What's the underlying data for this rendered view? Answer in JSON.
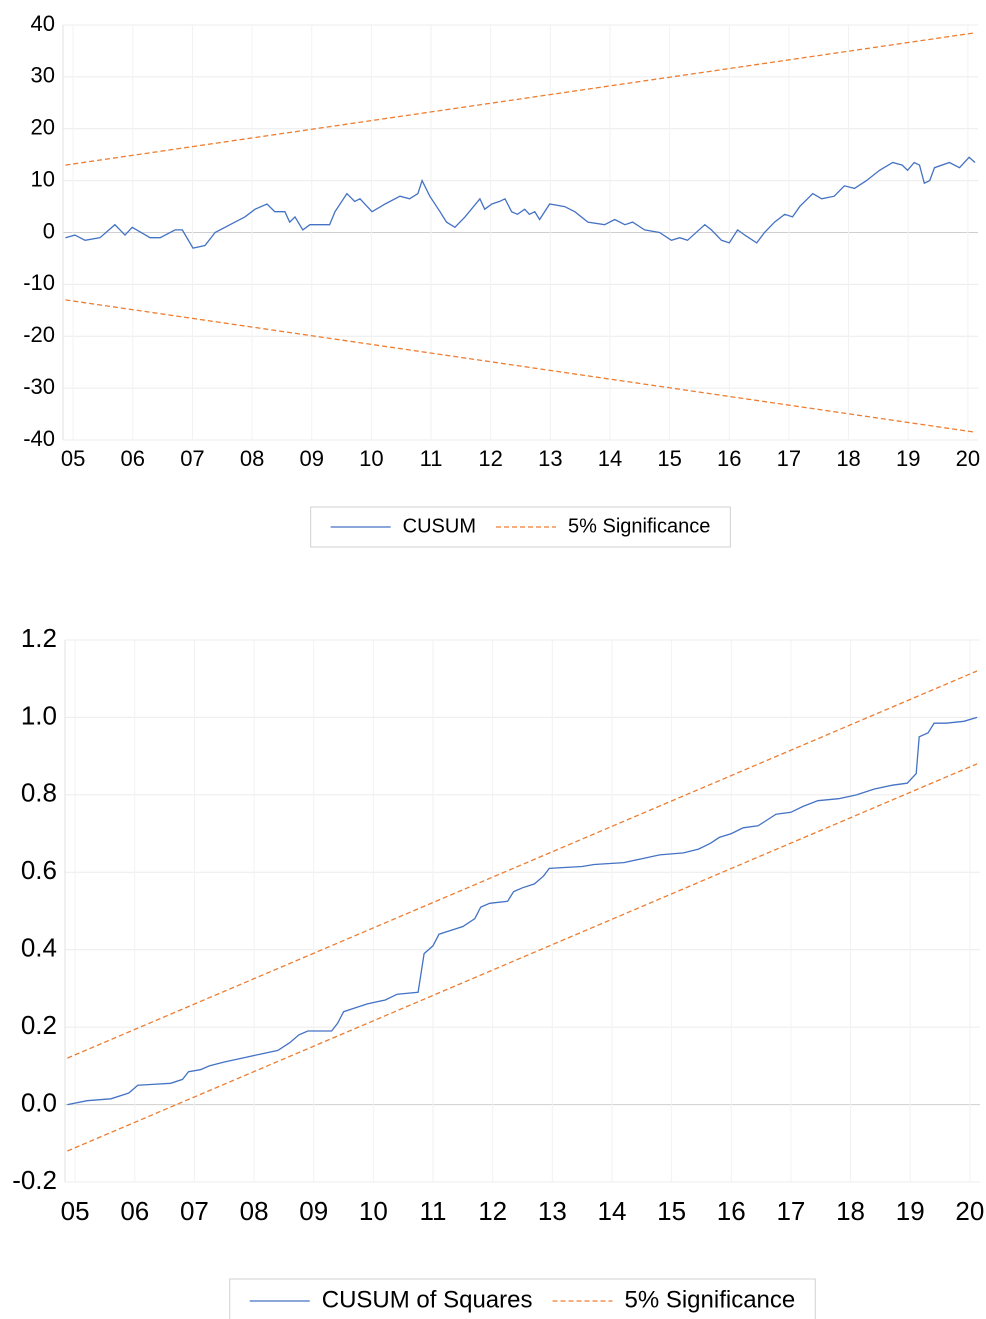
{
  "chart_data": [
    {
      "type": "line",
      "xlim": [
        4.83,
        20.17
      ],
      "ylim": [
        -40,
        40
      ],
      "yticks": [
        -40,
        -30,
        -20,
        -10,
        0,
        10,
        20,
        30,
        40
      ],
      "xticks": [
        {
          "value": 5,
          "label": "05"
        },
        {
          "value": 6,
          "label": "06"
        },
        {
          "value": 7,
          "label": "07"
        },
        {
          "value": 8,
          "label": "08"
        },
        {
          "value": 9,
          "label": "09"
        },
        {
          "value": 10,
          "label": "10"
        },
        {
          "value": 11,
          "label": "11"
        },
        {
          "value": 12,
          "label": "12"
        },
        {
          "value": 13,
          "label": "13"
        },
        {
          "value": 14,
          "label": "14"
        },
        {
          "value": 15,
          "label": "15"
        },
        {
          "value": 16,
          "label": "16"
        },
        {
          "value": 17,
          "label": "17"
        },
        {
          "value": 18,
          "label": "18"
        },
        {
          "value": 19,
          "label": "19"
        },
        {
          "value": 20,
          "label": "20"
        }
      ],
      "grid": true,
      "series": [
        {
          "name": "CUSUM",
          "color": "#4472c4",
          "x": [
            4.87,
            5.03,
            5.2,
            5.45,
            5.7,
            5.87,
            5.99,
            6.29,
            6.46,
            6.71,
            6.83,
            7.01,
            7.21,
            7.38,
            7.63,
            7.88,
            8.05,
            8.25,
            8.38,
            8.55,
            8.63,
            8.72,
            8.85,
            8.97,
            9.3,
            9.39,
            9.59,
            9.72,
            9.81,
            10.01,
            10.23,
            10.48,
            10.64,
            10.78,
            10.85,
            10.98,
            11.15,
            11.26,
            11.4,
            11.57,
            11.82,
            11.9,
            12.02,
            12.15,
            12.24,
            12.35,
            12.45,
            12.57,
            12.65,
            12.74,
            12.82,
            12.99,
            13.24,
            13.41,
            13.63,
            13.91,
            14.08,
            14.25,
            14.38,
            14.58,
            14.83,
            15.03,
            15.17,
            15.3,
            15.59,
            15.7,
            15.87,
            16.0,
            16.14,
            16.26,
            16.46,
            16.59,
            16.76,
            16.93,
            17.06,
            17.18,
            17.4,
            17.55,
            17.76,
            17.93,
            18.1,
            18.3,
            18.52,
            18.74,
            18.9,
            18.99,
            19.1,
            19.19,
            19.27,
            19.36,
            19.44,
            19.69,
            19.86,
            20.02,
            20.12
          ],
          "values": [
            -1,
            -0.5,
            -1.5,
            -1,
            1.5,
            -0.5,
            1,
            -1,
            -1,
            0.5,
            0.5,
            -3,
            -2.5,
            0,
            1.5,
            3,
            4.5,
            5.5,
            4,
            4,
            2,
            3,
            0.5,
            1.5,
            1.5,
            4,
            7.5,
            6,
            6.5,
            4,
            5.5,
            7,
            6.5,
            7.5,
            10,
            7,
            4,
            2,
            1,
            3,
            6.5,
            4.5,
            5.5,
            6,
            6.5,
            4,
            3.5,
            4.5,
            3.5,
            4,
            2.5,
            5.5,
            5,
            4,
            2,
            1.5,
            2.5,
            1.5,
            2,
            0.5,
            0,
            -1.5,
            -1,
            -1.5,
            1.5,
            0.5,
            -1.5,
            -2,
            0.5,
            -0.5,
            -2,
            0,
            2,
            3.5,
            3,
            5,
            7.5,
            6.5,
            7,
            9,
            8.5,
            10,
            12,
            13.5,
            13,
            12,
            13.5,
            13,
            9.5,
            10,
            12.5,
            13.5,
            12.5,
            14.5,
            13.5
          ]
        },
        {
          "name": "5% Significance",
          "color": "#ed7d31",
          "dashed": true,
          "x": [
            4.87,
            20.12
          ],
          "upper": [
            13,
            38.5
          ],
          "lower": [
            -13,
            -38.5
          ]
        }
      ]
    },
    {
      "type": "line",
      "xlim": [
        4.83,
        20.17
      ],
      "ylim": [
        -0.2,
        1.2
      ],
      "yticks": [
        -0.2,
        {
          "value": 0,
          "label": "0.0"
        },
        0.2,
        0.4,
        0.6,
        0.8,
        {
          "value": 1,
          "label": "1.0"
        },
        1.2
      ],
      "xticks": [
        {
          "value": 5,
          "label": "05"
        },
        {
          "value": 6,
          "label": "06"
        },
        {
          "value": 7,
          "label": "07"
        },
        {
          "value": 8,
          "label": "08"
        },
        {
          "value": 9,
          "label": "09"
        },
        {
          "value": 10,
          "label": "10"
        },
        {
          "value": 11,
          "label": "11"
        },
        {
          "value": 12,
          "label": "12"
        },
        {
          "value": 13,
          "label": "13"
        },
        {
          "value": 14,
          "label": "14"
        },
        {
          "value": 15,
          "label": "15"
        },
        {
          "value": 16,
          "label": "16"
        },
        {
          "value": 17,
          "label": "17"
        },
        {
          "value": 18,
          "label": "18"
        },
        {
          "value": 19,
          "label": "19"
        },
        {
          "value": 20,
          "label": "20"
        }
      ],
      "grid": true,
      "series": [
        {
          "name": "CUSUM of Squares",
          "color": "#4472c4",
          "x": [
            4.87,
            5.2,
            5.6,
            5.9,
            6.05,
            6.3,
            6.6,
            6.8,
            6.9,
            7.1,
            7.25,
            7.5,
            7.8,
            8.1,
            8.4,
            8.6,
            8.75,
            8.9,
            9.3,
            9.4,
            9.5,
            9.7,
            9.9,
            10.2,
            10.4,
            10.75,
            10.85,
            11.0,
            11.1,
            11.3,
            11.5,
            11.7,
            11.8,
            11.95,
            12.25,
            12.35,
            12.5,
            12.7,
            12.85,
            12.95,
            13.5,
            13.7,
            14.2,
            14.5,
            14.8,
            15.2,
            15.45,
            15.65,
            15.8,
            16.0,
            16.2,
            16.45,
            16.6,
            16.75,
            17.0,
            17.2,
            17.45,
            17.8,
            18.1,
            18.4,
            18.7,
            18.95,
            19.1,
            19.15,
            19.3,
            19.4,
            19.6,
            19.9,
            20.12
          ],
          "values": [
            0,
            0.01,
            0.015,
            0.03,
            0.05,
            0.052,
            0.055,
            0.065,
            0.085,
            0.09,
            0.1,
            0.11,
            0.12,
            0.13,
            0.14,
            0.16,
            0.18,
            0.19,
            0.19,
            0.21,
            0.24,
            0.25,
            0.26,
            0.27,
            0.285,
            0.29,
            0.39,
            0.41,
            0.44,
            0.45,
            0.46,
            0.48,
            0.51,
            0.52,
            0.525,
            0.55,
            0.56,
            0.57,
            0.59,
            0.61,
            0.615,
            0.62,
            0.625,
            0.635,
            0.645,
            0.65,
            0.66,
            0.675,
            0.69,
            0.7,
            0.715,
            0.72,
            0.735,
            0.75,
            0.755,
            0.77,
            0.785,
            0.79,
            0.8,
            0.815,
            0.825,
            0.83,
            0.855,
            0.95,
            0.96,
            0.985,
            0.985,
            0.99,
            1.0
          ]
        },
        {
          "name": "5% Significance",
          "color": "#ed7d31",
          "dashed": true,
          "x": [
            4.87,
            20.12
          ],
          "upper": [
            0.12,
            1.12
          ],
          "lower": [
            -0.12,
            0.88
          ]
        }
      ]
    }
  ]
}
